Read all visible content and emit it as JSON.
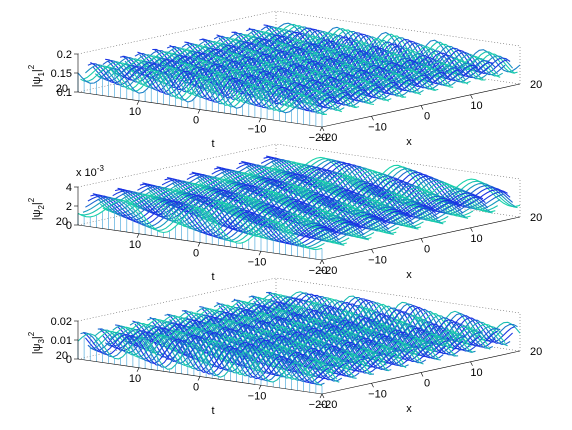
{
  "chart_data": [
    {
      "type": "surface",
      "zlabel_sym": "|ψ",
      "zlabel_sub": "1",
      "zlabel_sup": "2",
      "xlabel": "x",
      "tlabel": "t",
      "multiplier": "",
      "zlim": [
        0.1,
        0.2
      ],
      "zticks": [
        "0.1",
        "0.15",
        "0.2"
      ],
      "ztick_values": [
        0.1,
        0.15,
        0.2
      ],
      "xticks": [
        "−20",
        "−10",
        "0",
        "10",
        "20"
      ],
      "xtick_values": [
        -20,
        -10,
        0,
        10,
        20
      ],
      "tticks": [
        "20",
        "10",
        "0",
        "−10",
        "−20"
      ],
      "ttick_values": [
        20,
        10,
        0,
        -10,
        -20
      ],
      "xlim": [
        -20,
        20
      ],
      "tlim": [
        -20,
        20
      ],
      "baseline": 0.15,
      "amplitude": 0.035,
      "wave_period_x": 3.2,
      "grid": false
    },
    {
      "type": "surface",
      "zlabel_sym": "|ψ",
      "zlabel_sub": "2",
      "zlabel_sup": "2",
      "xlabel": "x",
      "tlabel": "t",
      "multiplier": "x 10",
      "multiplier_exp": "-3",
      "zlim": [
        0,
        4
      ],
      "zticks": [
        "0",
        "2",
        "4"
      ],
      "ztick_values": [
        0,
        2,
        4
      ],
      "xticks": [
        "−20",
        "−10",
        "0",
        "10",
        "20"
      ],
      "xtick_values": [
        -20,
        -10,
        0,
        10,
        20
      ],
      "tticks": [
        "20",
        "10",
        "0",
        "−10",
        "−20"
      ],
      "ttick_values": [
        20,
        10,
        0,
        -10,
        -20
      ],
      "xlim": [
        -20,
        20
      ],
      "tlim": [
        -20,
        20
      ],
      "baseline": 2.0,
      "amplitude": 1.6,
      "wave_period_x": 5.0,
      "grid": false
    },
    {
      "type": "surface",
      "zlabel_sym": "|ψ",
      "zlabel_sub": "3",
      "zlabel_sup": "2",
      "xlabel": "x",
      "tlabel": "t",
      "multiplier": "",
      "zlim": [
        0,
        0.02
      ],
      "zticks": [
        "0",
        "0.01",
        "0.02"
      ],
      "ztick_values": [
        0,
        0.01,
        0.02
      ],
      "xticks": [
        "−20",
        "−10",
        "0",
        "10",
        "20"
      ],
      "xtick_values": [
        -20,
        -10,
        0,
        10,
        20
      ],
      "tticks": [
        "20",
        "10",
        "0",
        "−10",
        "−20"
      ],
      "ttick_values": [
        20,
        10,
        0,
        -10,
        -20
      ],
      "xlim": [
        -20,
        20
      ],
      "tlim": [
        -20,
        20
      ],
      "baseline": 0.009,
      "amplitude": 0.008,
      "wave_period_x": 3.4,
      "grid": false
    }
  ],
  "colors": {
    "surface_low": "#1a2ee6",
    "surface_high": "#19f0a0",
    "stem": "#3aa0d8"
  }
}
